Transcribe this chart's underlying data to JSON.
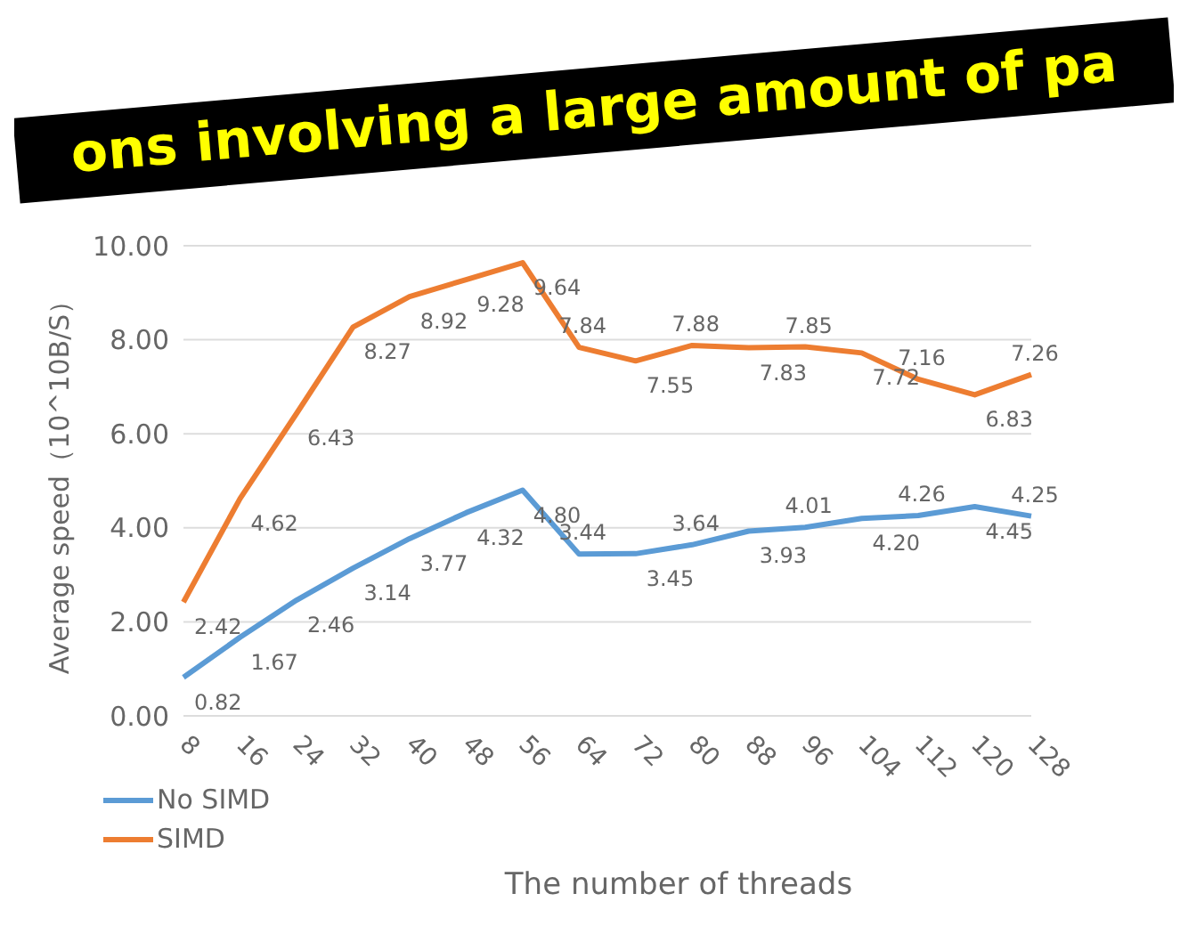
{
  "chart_data": {
    "type": "line",
    "annotations": [
      "ons involving a large amount of pa"
    ],
    "xlabel": "The number of threads",
    "ylabel": "Average speed（10^10B/S）",
    "categories": [
      "8",
      "16",
      "24",
      "32",
      "40",
      "48",
      "56",
      "64",
      "72",
      "80",
      "88",
      "96",
      "104",
      "112",
      "120",
      "128"
    ],
    "series": [
      {
        "name": "No SIMD",
        "color": "#5b9bd5",
        "values": [
          0.82,
          1.67,
          2.46,
          3.14,
          3.77,
          4.32,
          4.8,
          3.44,
          3.45,
          3.64,
          3.93,
          4.01,
          4.2,
          4.26,
          4.45,
          4.25
        ],
        "value_labels": [
          "0.82",
          "1.67",
          "2.46",
          "3.14",
          "3.77",
          "4.32",
          "4.80",
          "3.44",
          "3.45",
          "3.64",
          "3.93",
          "4.01",
          "4.20",
          "4.26",
          "4.45",
          "4.25"
        ]
      },
      {
        "name": "SIMD",
        "color": "#ed7d31",
        "values": [
          2.42,
          4.62,
          6.43,
          8.27,
          8.92,
          9.28,
          9.64,
          7.84,
          7.55,
          7.88,
          7.83,
          7.85,
          7.72,
          7.16,
          6.83,
          7.26
        ],
        "value_labels": [
          "2.42",
          "4.62",
          "6.43",
          "8.27",
          "8.92",
          "9.28",
          "9.64",
          "7.84",
          "7.55",
          "7.88",
          "7.83",
          "7.85",
          "7.72",
          "7.16",
          "6.83",
          "7.26"
        ]
      }
    ],
    "ylim": [
      0,
      10
    ],
    "yticks": [
      {
        "value": 0,
        "label": "0.00"
      },
      {
        "value": 2,
        "label": "2.00"
      },
      {
        "value": 4,
        "label": "4.00"
      },
      {
        "value": 6,
        "label": "6.00"
      },
      {
        "value": 8,
        "label": "8.00"
      },
      {
        "value": 10,
        "label": "10.00"
      }
    ],
    "grid": "y",
    "legend": "bottom left",
    "marker": "none",
    "line_style": "solid"
  }
}
